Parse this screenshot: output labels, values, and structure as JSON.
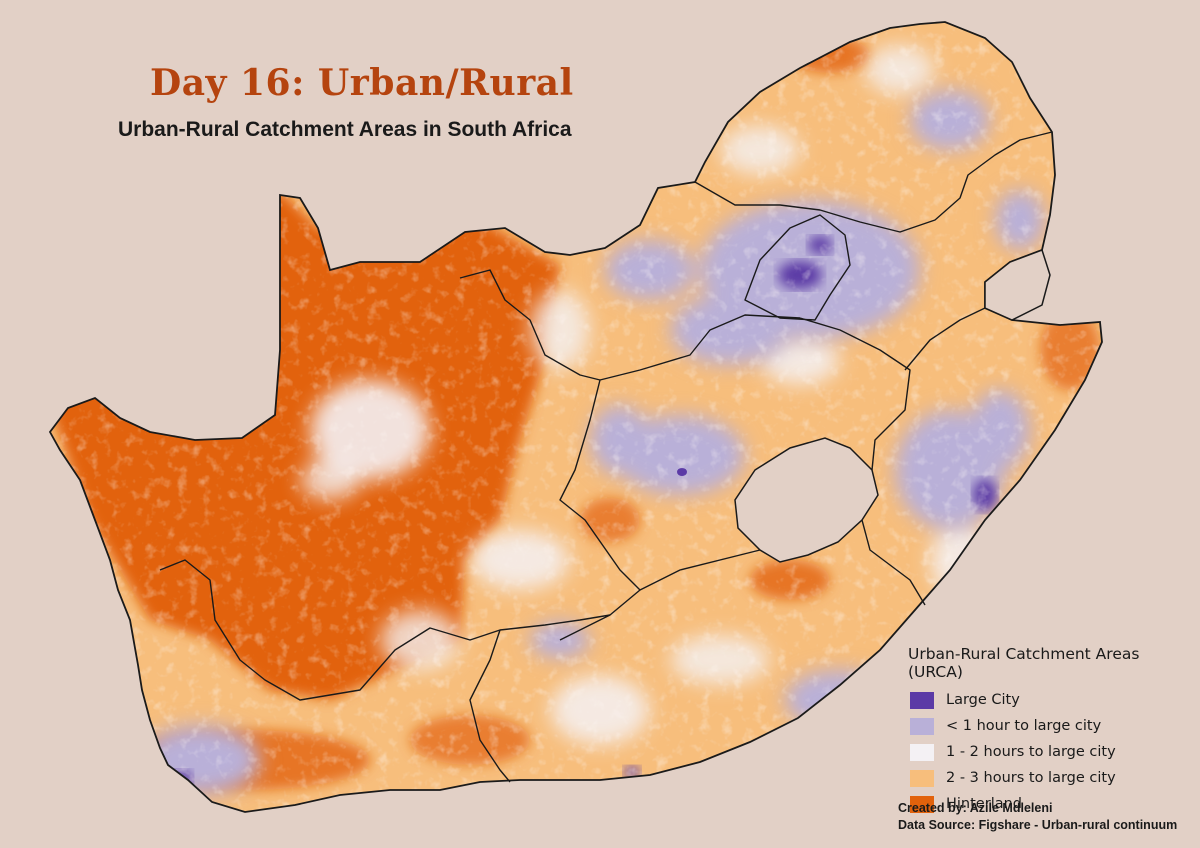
{
  "header": {
    "title": "Day 16: Urban/Rural",
    "subtitle": "Urban-Rural Catchment Areas in South Africa"
  },
  "legend": {
    "title": "Urban-Rural Catchment Areas (URCA)",
    "items": [
      {
        "label": "Large City",
        "color": "#5b3aa6"
      },
      {
        "label": "< 1 hour to large city",
        "color": "#b9b0d8"
      },
      {
        "label": "1 - 2 hours to large city",
        "color": "#f4f1f4"
      },
      {
        "label": "2 - 3 hours to large city",
        "color": "#f7be7c"
      },
      {
        "label": "Hinterland",
        "color": "#e2620c"
      }
    ]
  },
  "credits": {
    "author": "Created by: Azile Mdleleni",
    "source": "Data Source: Figshare - Urban-rural continuum"
  },
  "colors": {
    "background": "#e2d0c6",
    "title": "#b5440f",
    "border": "#1a1a1a"
  }
}
